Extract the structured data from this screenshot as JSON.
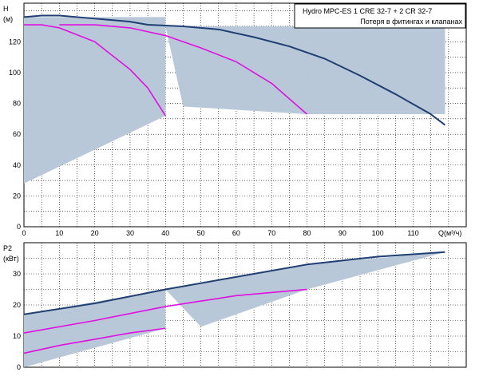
{
  "chart_data": [
    {
      "type": "line",
      "panel": "head",
      "legend_title": "Hydro MPC-ES 1 CRE 32-7  +  2 CR 32-7",
      "legend_note": "Потеря в фитингах и клапанах",
      "ylabel": "H",
      "yunit": "(м)",
      "xlabel": "Q(м³/ч)",
      "xlim": [
        0,
        125
      ],
      "ylim": [
        0,
        145
      ],
      "xticks": [
        "0",
        "10",
        "20",
        "30",
        "40",
        "50",
        "60",
        "70",
        "80",
        "90",
        "100",
        "110"
      ],
      "yticks": [
        "0",
        "20",
        "40",
        "60",
        "80",
        "100",
        "120"
      ],
      "grid": true,
      "colors": {
        "max_curve": "#1f3f73",
        "pump_curves": "#e010e0",
        "shade": "#b8c8d8"
      },
      "series": [
        {
          "style": "max",
          "x": [
            0,
            5,
            10,
            20,
            30,
            35,
            45,
            55,
            65,
            75,
            85,
            95,
            105,
            115,
            119
          ],
          "y": [
            136,
            137,
            137,
            135,
            133,
            131,
            130,
            128,
            123,
            117,
            109,
            98,
            86,
            73,
            66
          ]
        },
        {
          "style": "pump",
          "x": [
            0,
            5,
            10,
            20,
            30,
            35,
            40
          ],
          "y": [
            131,
            131,
            129,
            120,
            102,
            90,
            72
          ]
        },
        {
          "style": "pump",
          "x": [
            10,
            20,
            30,
            40,
            50,
            60,
            70,
            80
          ],
          "y": [
            131,
            131,
            129,
            124,
            116,
            107,
            93,
            73
          ]
        }
      ],
      "shade_regions": [
        {
          "x": [
            0,
            40,
            40,
            0
          ],
          "y": [
            136,
            136,
            72,
            28
          ]
        },
        {
          "x": [
            40,
            80,
            80,
            45
          ],
          "y": [
            130,
            130,
            73,
            78
          ]
        },
        {
          "x": [
            80,
            119,
            119,
            80
          ],
          "y": [
            129,
            129,
            73,
            73
          ]
        }
      ]
    },
    {
      "type": "line",
      "panel": "power",
      "ylabel": "P2",
      "yunit": "(кВт)",
      "xlim": [
        0,
        125
      ],
      "ylim": [
        0,
        40
      ],
      "yticks": [
        "0",
        "10",
        "20",
        "30"
      ],
      "grid": true,
      "colors": {
        "max_curve": "#1f3f73",
        "pump_curves": "#e010e0",
        "shade": "#b8c8d8"
      },
      "series": [
        {
          "style": "max",
          "x": [
            0,
            20,
            40,
            60,
            80,
            100,
            119
          ],
          "y": [
            17,
            20.5,
            25,
            29,
            33,
            35.5,
            37
          ]
        },
        {
          "style": "pump",
          "x": [
            0,
            20,
            40,
            60,
            80
          ],
          "y": [
            11,
            15,
            19.5,
            23,
            25
          ]
        },
        {
          "style": "pump",
          "x": [
            0,
            10,
            20,
            30,
            40
          ],
          "y": [
            4.5,
            7,
            9,
            11,
            12.5
          ]
        }
      ],
      "shade_regions": [
        {
          "x": [
            0,
            40,
            40,
            0
          ],
          "y": [
            17,
            25,
            12.5,
            0
          ]
        },
        {
          "x": [
            40,
            80,
            80,
            50
          ],
          "y": [
            25,
            33,
            25,
            13
          ]
        },
        {
          "x": [
            80,
            119,
            119,
            80
          ],
          "y": [
            33,
            37,
            37,
            25
          ]
        }
      ]
    }
  ]
}
